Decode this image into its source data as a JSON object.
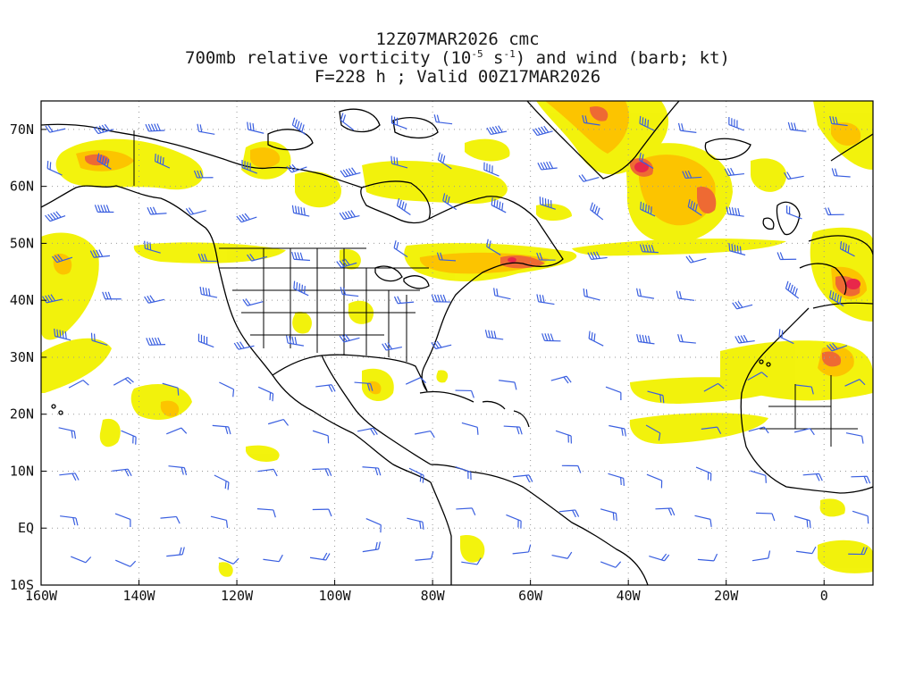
{
  "title": {
    "line1": "12Z07MAR2026 cmc",
    "line2_prefix": "700mb relative vorticity (10",
    "line2_exp1": "-5",
    "line2_mid": " s",
    "line2_exp2": "-1",
    "line2_suffix": ") and wind (barb; kt)",
    "line3": "F=228 h ; Valid 00Z17MAR2026"
  },
  "map": {
    "projection": "cylindrical equidistant",
    "lon_range": [
      -160,
      10
    ],
    "lat_range": [
      -10,
      75
    ],
    "grid": "dotted",
    "x_ticks": [
      "160W",
      "140W",
      "120W",
      "100W",
      "80W",
      "60W",
      "40W",
      "20W",
      "0"
    ],
    "y_ticks": [
      "10S",
      "EQ",
      "10N",
      "20N",
      "30N",
      "40N",
      "50N",
      "60N",
      "70N"
    ],
    "colors": {
      "vorticity_low": "#f2f200",
      "vorticity_mid": "#fcc400",
      "vorticity_high": "#ee6a33",
      "vorticity_max": "#e8284a",
      "wind_barb": "#3a5fe0",
      "coastline": "#000000"
    }
  }
}
